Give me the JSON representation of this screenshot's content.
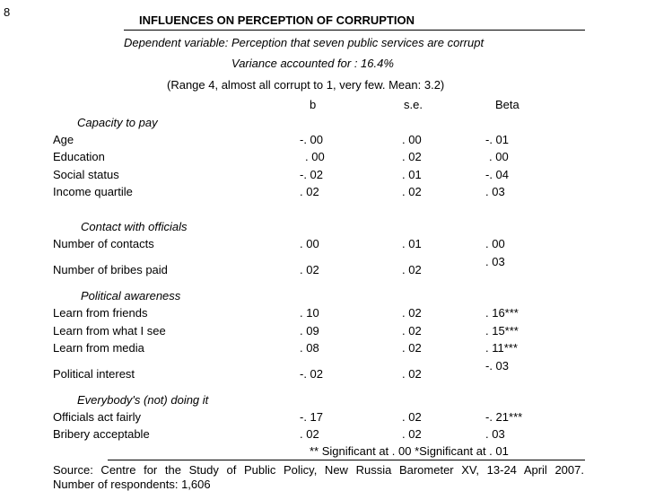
{
  "page_number": "8",
  "title": "INFLUENCES ON PERCEPTION OF CORRUPTION",
  "dependent_variable": "Dependent variable: Perception that seven public services are corrupt",
  "variance": "Variance accounted for : 16.4%",
  "range_note": "(Range 4, almost all corrupt to 1, very few. Mean: 3.2)",
  "columns": {
    "b": "b",
    "se": "s.e.",
    "beta": "Beta"
  },
  "groups": [
    {
      "heading": "Capacity to pay",
      "rows": [
        {
          "label": "Age",
          "b": "-. 00",
          "se": ". 00",
          "beta": "-. 01"
        },
        {
          "label": "Education",
          "b": ". 00",
          "se": ". 02",
          "beta": ". 00"
        },
        {
          "label": "Social status",
          "b": "-. 02",
          "se": ". 01",
          "beta": "-. 04"
        },
        {
          "label": "Income quartile",
          "b": ". 02",
          "se": ". 02",
          "beta": ". 03"
        }
      ]
    },
    {
      "heading": "Contact with officials",
      "rows": [
        {
          "label": "Number of contacts",
          "b": ". 00",
          "se": ". 01",
          "beta": ". 00"
        },
        {
          "label": "Number of bribes paid",
          "b": ". 02",
          "se": ". 02",
          "beta": ". 03"
        }
      ]
    },
    {
      "heading": "Political awareness",
      "rows": [
        {
          "label": "Learn from friends",
          "b": ". 10",
          "se": ". 02",
          "beta": ". 16***"
        },
        {
          "label": "Learn from what I see",
          "b": ". 09",
          "se": ". 02",
          "beta": ". 15***"
        },
        {
          "label": "Learn from media",
          "b": ". 08",
          "se": ". 02",
          "beta": ". 11***"
        },
        {
          "label": "Political interest",
          "b": "-. 02",
          "se": ". 02",
          "beta": "-. 03"
        }
      ]
    },
    {
      "heading": "Everybody's (not) doing it",
      "rows": [
        {
          "label": "Officials act fairly",
          "b": "-. 17",
          "se": ". 02",
          "beta": "-. 21***"
        },
        {
          "label": "Bribery acceptable",
          "b": ". 02",
          "se": ". 02",
          "beta": ". 03"
        }
      ]
    }
  ],
  "significance_note": "** Significant at . 00 *Significant at . 01",
  "source": "Source: Centre for the Study of Public Policy, New Russia Barometer XV, 13-24 April 2007.",
  "respondents": "Number of respondents: 1,606"
}
